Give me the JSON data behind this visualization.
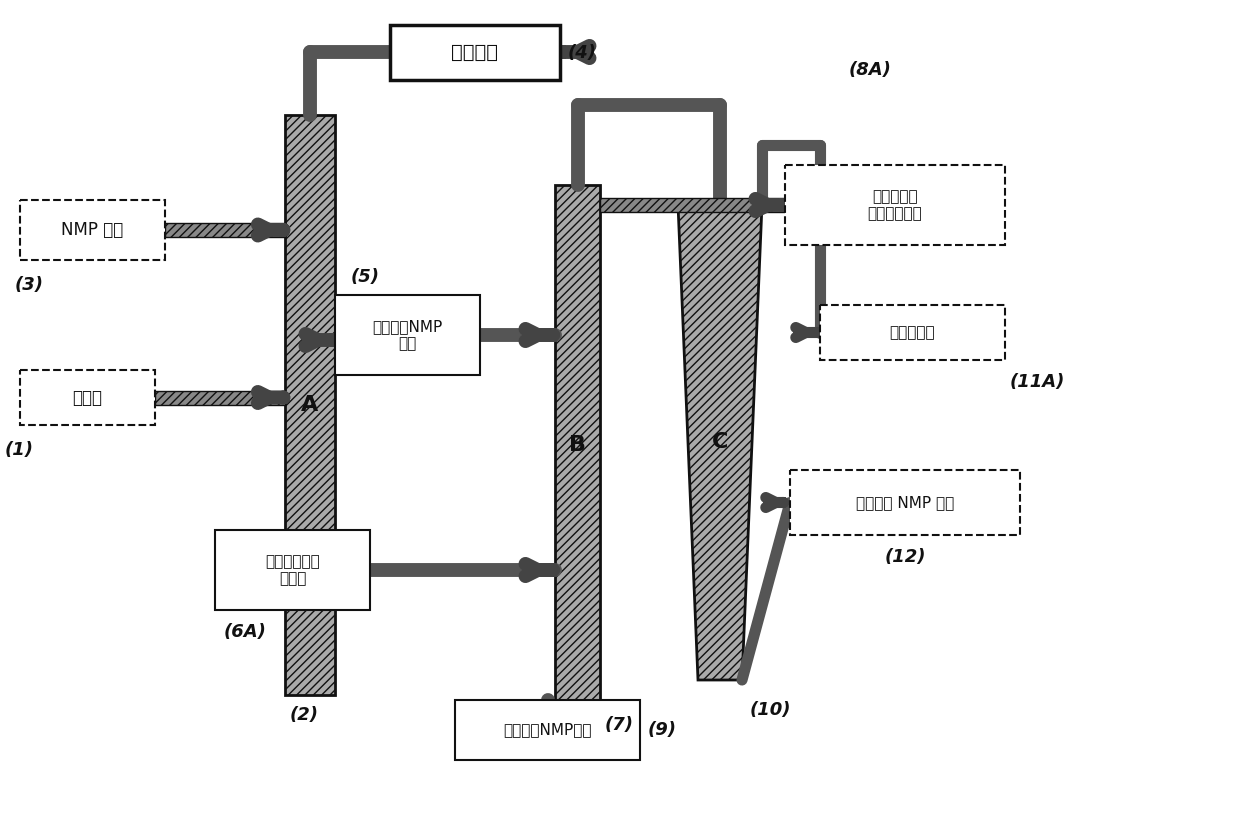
{
  "bg_color": "#ffffff",
  "labels": {
    "nmp_solvent": "NMP 溶剂",
    "crude_diesel": "粗柴油",
    "purified_diesel": "纯化柴油",
    "contaminated_nmp": "受污染的NMP\n溶剂",
    "water_polar": "水或其他极性\n化合物",
    "sulfur_aromatic": "硫化合物、\n芳族化合物等",
    "water_recovery": "要回收的水",
    "nmp_distill": "要蒸馏的 NMP 溶剂",
    "water_contaminated_nmp": "水污染的NMP溶剂"
  },
  "numbers": {
    "n1": "(1)",
    "n2": "(2)",
    "n3": "(3)",
    "n4": "(4)",
    "n5": "(5)",
    "n6A": "(6A)",
    "n7": "(7)",
    "n8A": "(8A)",
    "n9": "(9)",
    "n10": "(10)",
    "n11A": "(11A)",
    "n12": "(12)"
  }
}
